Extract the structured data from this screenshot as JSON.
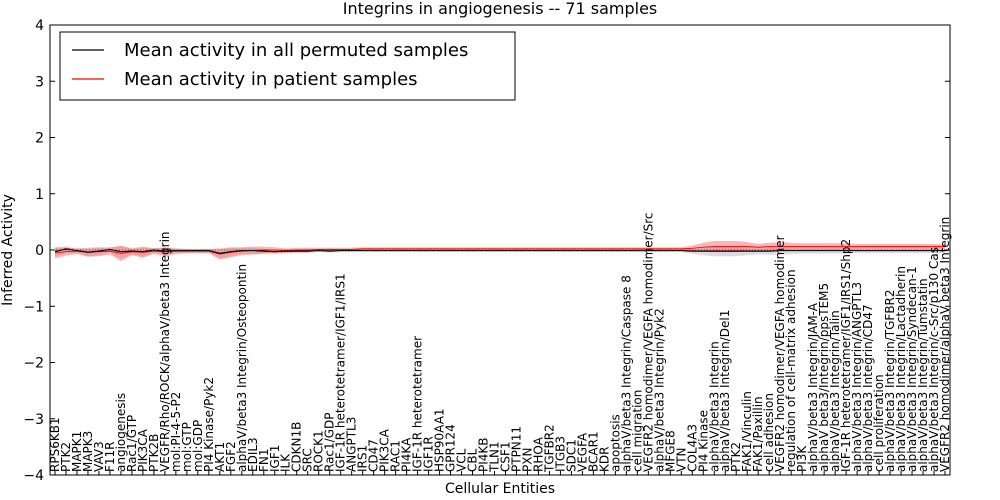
{
  "chart_data": {
    "type": "line",
    "title": "Integrins in angiogenesis -- 71 samples",
    "xlabel": "Cellular Entities",
    "ylabel": "Inferred Activity",
    "ylim": [
      -4,
      4
    ],
    "yticks": [
      -4,
      -3,
      -2,
      -1,
      0,
      1,
      2,
      3,
      4
    ],
    "ytick_labels": [
      "−4",
      "−3",
      "−2",
      "−1",
      "0",
      "1",
      "2",
      "3",
      "4"
    ],
    "legend": {
      "position": "top-left",
      "entries": [
        {
          "label": "Mean activity in all permuted samples",
          "color": "#000000"
        },
        {
          "label": "Mean activity in patient samples",
          "color": "#ff0000"
        }
      ]
    },
    "categories": [
      "RPS6KB1",
      "PTK2",
      "MAPK1",
      "MAPK3",
      "VAV3",
      "F11R",
      "angiogenesis",
      "Rac1/GTP",
      "PIK3CA",
      "PTK2B",
      "VEGFR/Rho/ROCK/alphaV/beta3 Integrin",
      "mol:PI-4-5-P2",
      "mol:GTP",
      "mol:GDP",
      "PI4 Kinase/Pyk2",
      "AKT1",
      "FGF2",
      "alphaV/beta3 Integrin/Osteopontin",
      "EDIL3",
      "FN1",
      "IGF1",
      "ILK",
      "CDKN1B",
      "SRC",
      "ROCK1",
      "Rac1/GDP",
      "IGF-1R heterotetramer/IGF1/IRS1",
      "ANGPTL3",
      "IRS1",
      "CD47",
      "PIK3CA",
      "RAC1",
      "PI4KA",
      "IGF-1R heterotetramer",
      "IGF1R",
      "HSP90AA1",
      "GPR124",
      "VCL",
      "CBL",
      "PI4KB",
      "TLN1",
      "CSF1",
      "PTPN11",
      "PXN",
      "RHOA",
      "TGFBR2",
      "ITGB3",
      "SDC1",
      "VEGFA",
      "BCAR1",
      "KDR",
      "apoptosis",
      "alphaV/beta3 Integrin/Caspase 8",
      "cell migration",
      "VEGFR2 homodimer/VEGFA homodimer/Src",
      "alphaV/beta3 Integrin/Pyk2",
      "MFGE8",
      "VTN",
      "COL4A3",
      "PI4 Kinase",
      "alphaV/beta3 Integrin",
      "alphaV/beta3 Integrin/Del1",
      "PTK2",
      "FAK1/Vinculin",
      "FAK1/Paxillin",
      "cell adhesion",
      "VEGFR2 homodimer/VEGFA homodimer",
      "regulation of cell-matrix adhesion",
      "PI3K",
      "alphaV/beta3 Integrin/JAM-A",
      "alphaV beta3/Integrin/ppsTEM5",
      "alphaV/beta3 Integrin/Talin",
      "IGF-1R heterotetramer/IGF1/IRS1/Shp2",
      "alphaV/beta3 Integrin/ANGPTL3",
      "alphaV/beta3 Integrin/CD47",
      "cell proliferation",
      "alphaV/beta3 Integrin/TGFBR2",
      "alphaV/beta3 Integrin/Lactadherin",
      "alphaV/beta3 Integrin/Syndecan-1",
      "alphaV/beta3 Integrin/Tumstatin",
      "alphaV/beta3 Integrin/c-Src/p130 Cas",
      "VEGFR2 homodimer/alphaV beta3 Integrin"
    ],
    "series": [
      {
        "name": "Mean activity in all permuted samples",
        "color": "#000000",
        "values": [
          -0.03,
          0.02,
          -0.01,
          -0.04,
          -0.02,
          0.01,
          -0.03,
          -0.02,
          -0.03,
          0.0,
          -0.02,
          -0.01,
          -0.01,
          -0.01,
          -0.01,
          -0.06,
          -0.03,
          -0.01,
          -0.01,
          -0.02,
          -0.03,
          -0.02,
          -0.02,
          -0.02,
          -0.01,
          -0.02,
          -0.01,
          -0.01,
          -0.01,
          -0.01,
          -0.01,
          -0.01,
          -0.01,
          -0.01,
          -0.01,
          -0.01,
          -0.01,
          -0.01,
          -0.01,
          -0.01,
          -0.01,
          -0.01,
          -0.01,
          -0.01,
          -0.01,
          -0.01,
          -0.01,
          -0.01,
          -0.01,
          -0.01,
          -0.01,
          -0.01,
          -0.01,
          -0.01,
          -0.01,
          -0.01,
          -0.01,
          -0.01,
          -0.02,
          -0.02,
          -0.02,
          -0.02,
          -0.02,
          -0.02,
          -0.02,
          -0.02,
          -0.01,
          -0.01,
          -0.01,
          -0.01,
          -0.01,
          -0.01,
          -0.01,
          -0.01,
          -0.01,
          -0.01,
          -0.01,
          -0.01,
          -0.01,
          -0.01,
          -0.01,
          -0.01
        ]
      },
      {
        "name": "Mean activity in patient samples",
        "color": "#ff0000",
        "values": [
          -0.05,
          -0.03,
          -0.02,
          -0.04,
          -0.03,
          -0.02,
          -0.06,
          -0.03,
          -0.04,
          -0.02,
          -0.03,
          -0.02,
          -0.02,
          -0.02,
          -0.02,
          -0.07,
          -0.04,
          -0.02,
          -0.01,
          0.0,
          0.0,
          -0.01,
          0.0,
          0.0,
          0.01,
          0.01,
          0.01,
          0.01,
          0.02,
          0.02,
          0.02,
          0.02,
          0.02,
          0.02,
          0.02,
          0.02,
          0.02,
          0.02,
          0.02,
          0.02,
          0.02,
          0.02,
          0.02,
          0.02,
          0.02,
          0.02,
          0.02,
          0.02,
          0.02,
          0.02,
          0.02,
          0.02,
          0.02,
          0.02,
          0.02,
          0.02,
          0.02,
          0.02,
          0.03,
          0.05,
          0.06,
          0.06,
          0.06,
          0.06,
          0.05,
          0.06,
          0.06,
          0.06,
          0.06,
          0.06,
          0.06,
          0.06,
          0.06,
          0.06,
          0.06,
          0.06,
          0.06,
          0.06,
          0.06,
          0.06,
          0.06,
          0.06
        ],
        "band_halfwidth": [
          0.1,
          0.07,
          0.05,
          0.08,
          0.08,
          0.06,
          0.14,
          0.06,
          0.1,
          0.05,
          0.08,
          0.05,
          0.04,
          0.04,
          0.04,
          0.1,
          0.09,
          0.07,
          0.07,
          0.06,
          0.05,
          0.04,
          0.04,
          0.04,
          0.03,
          0.03,
          0.03,
          0.03,
          0.03,
          0.03,
          0.03,
          0.03,
          0.03,
          0.03,
          0.03,
          0.03,
          0.03,
          0.03,
          0.03,
          0.03,
          0.03,
          0.03,
          0.03,
          0.03,
          0.03,
          0.03,
          0.03,
          0.03,
          0.03,
          0.03,
          0.03,
          0.03,
          0.03,
          0.03,
          0.03,
          0.03,
          0.03,
          0.03,
          0.05,
          0.08,
          0.1,
          0.1,
          0.1,
          0.08,
          0.06,
          0.07,
          0.08,
          0.07,
          0.06,
          0.06,
          0.06,
          0.06,
          0.06,
          0.05,
          0.05,
          0.05,
          0.05,
          0.05,
          0.05,
          0.05,
          0.05,
          0.05
        ]
      }
    ]
  }
}
